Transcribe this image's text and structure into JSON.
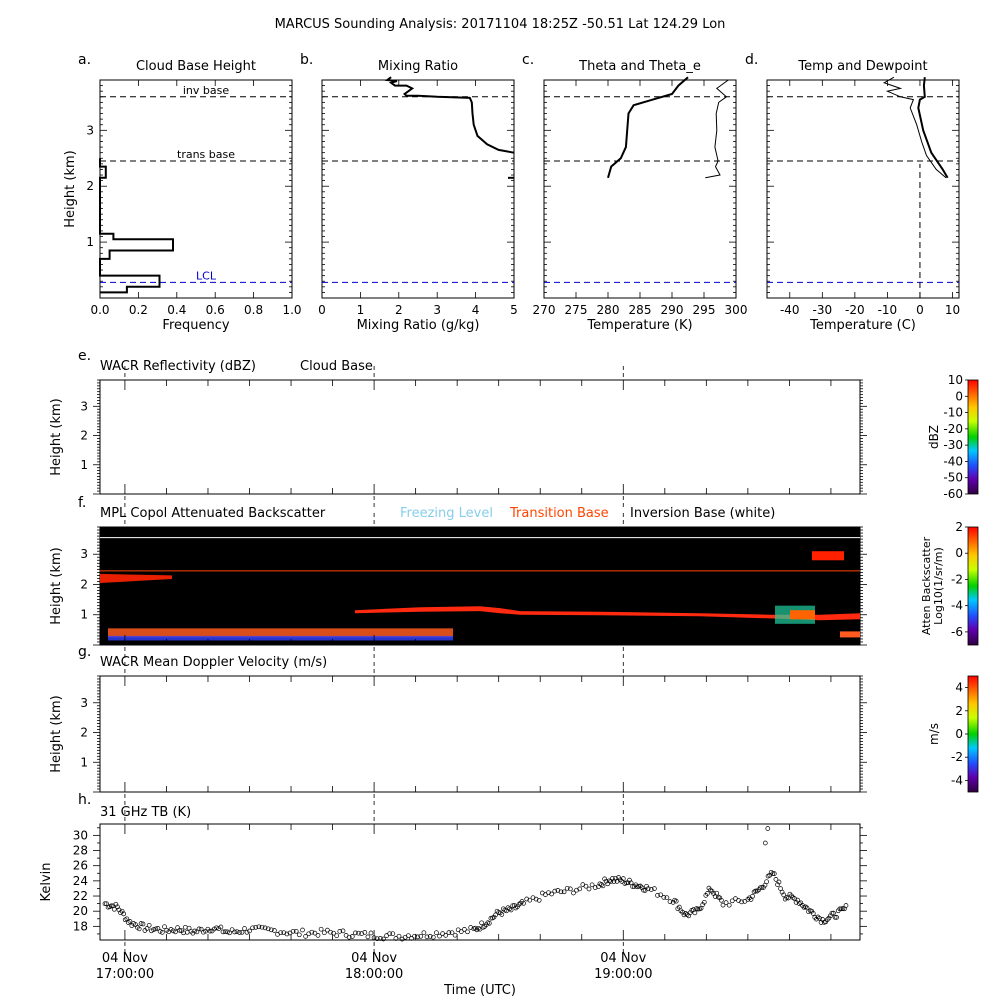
{
  "figure_title": "MARCUS Sounding Analysis: 20171104 18:25Z   -50.51 Lat  124.29 Lon",
  "colors": {
    "freezing": "#87ceeb",
    "transition": "#ff4500",
    "lcl": "#0000cc",
    "mpl_bg": "#000000"
  },
  "chart_data": [
    {
      "id": "a",
      "panel_letter": "a.",
      "type": "line",
      "title": "Cloud Base Height",
      "xlabel": "Frequency",
      "ylabel": "Height (km)",
      "xlim": [
        0,
        1.0
      ],
      "ylim": [
        0,
        3.9
      ],
      "xticks": [
        "0.0",
        "0.2",
        "0.4",
        "0.6",
        "0.8",
        "1.0"
      ],
      "xtick_values": [
        0,
        0.2,
        0.4,
        0.6,
        0.8,
        1.0
      ],
      "yticks": [
        "1",
        "2",
        "3"
      ],
      "ytick_values": [
        1,
        2,
        3
      ],
      "annotations": [
        {
          "text": "inv base",
          "y": 3.6
        },
        {
          "text": "trans base",
          "y": 2.45
        },
        {
          "text": "LCL",
          "y": 0.28
        }
      ],
      "series": [
        {
          "x": [
            0.0,
            0.14,
            0.14,
            0.31,
            0.31,
            0.0,
            0.0,
            0.05,
            0.05,
            0.38,
            0.38,
            0.07,
            0.07,
            0.0,
            0.0,
            0.03,
            0.03,
            0.0,
            0.0
          ],
          "y": [
            0.1,
            0.1,
            0.2,
            0.2,
            0.4,
            0.4,
            0.7,
            0.7,
            0.85,
            0.85,
            1.05,
            1.05,
            1.15,
            1.15,
            2.15,
            2.15,
            2.35,
            2.35,
            2.5
          ]
        }
      ]
    },
    {
      "id": "b",
      "panel_letter": "b.",
      "type": "line",
      "title": "Mixing Ratio",
      "xlabel": "Mixing Ratio (g/kg)",
      "ylabel": "",
      "xlim": [
        0,
        5
      ],
      "ylim": [
        0,
        3.9
      ],
      "xticks": [
        "0",
        "1",
        "2",
        "3",
        "4",
        "5"
      ],
      "xtick_values": [
        0,
        1,
        2,
        3,
        4,
        5
      ],
      "series": [
        {
          "x": [
            5.0,
            4.6,
            4.3,
            4.05,
            3.95,
            3.92,
            3.9,
            3.85,
            3.0,
            2.5,
            2.2,
            2.15,
            2.35,
            2.2,
            1.9,
            1.8,
            1.95,
            1.7,
            1.8
          ],
          "y": [
            2.6,
            2.65,
            2.75,
            2.9,
            3.1,
            3.3,
            3.5,
            3.58,
            3.6,
            3.62,
            3.62,
            3.65,
            3.75,
            3.8,
            3.8,
            3.85,
            3.88,
            3.9,
            3.95
          ]
        }
      ]
    },
    {
      "id": "c",
      "panel_letter": "c.",
      "type": "line",
      "title": "Theta and Theta_e",
      "xlabel": "Temperature (K)",
      "ylabel": "",
      "xlim": [
        270,
        300
      ],
      "ylim": [
        0,
        3.9
      ],
      "xticks": [
        "270",
        "275",
        "280",
        "285",
        "290",
        "295",
        "300"
      ],
      "xtick_values": [
        270,
        275,
        280,
        285,
        290,
        295,
        300
      ],
      "series": [
        {
          "x": [
            280.0,
            280.5,
            282.0,
            282.8,
            283.0,
            283.2,
            284.0,
            287.0,
            290.0,
            291.0,
            292.5
          ],
          "y": [
            2.15,
            2.35,
            2.5,
            2.7,
            3.0,
            3.3,
            3.45,
            3.55,
            3.65,
            3.8,
            3.95
          ]
        },
        {
          "x": [
            295.2,
            297.5,
            296.8,
            297.2,
            296.7,
            297.0,
            296.9,
            297.3,
            298.5,
            297.0,
            298.8
          ],
          "y": [
            2.15,
            2.2,
            2.35,
            2.45,
            2.7,
            3.0,
            3.3,
            3.5,
            3.6,
            3.75,
            3.9
          ]
        }
      ]
    },
    {
      "id": "d",
      "panel_letter": "d.",
      "type": "line",
      "title": "Temp and Dewpoint",
      "xlabel": "Temperature (C)",
      "ylabel": "",
      "xlim": [
        -47,
        12
      ],
      "ylim": [
        0,
        3.9
      ],
      "xticks": [
        "-40",
        "-30",
        "-20",
        "-10",
        "0",
        "10"
      ],
      "xtick_values": [
        -40,
        -30,
        -20,
        -10,
        0,
        10
      ],
      "series": [
        {
          "x": [
            8.5,
            7.0,
            3.5,
            1.0,
            -0.5,
            0.0,
            1.5,
            1.2,
            1.5
          ],
          "y": [
            2.15,
            2.3,
            2.6,
            3.0,
            3.4,
            3.55,
            3.6,
            3.8,
            3.95
          ]
        },
        {
          "x": [
            8.0,
            5.0,
            2.0,
            0.5,
            -1.0,
            -3.0,
            -2.0,
            -6.0,
            -10.0,
            -6.0,
            -11.0,
            -8.0
          ],
          "y": [
            2.15,
            2.3,
            2.55,
            2.8,
            3.1,
            3.4,
            3.55,
            3.6,
            3.7,
            3.75,
            3.85,
            3.95
          ]
        }
      ]
    },
    {
      "id": "e",
      "panel_letter": "e.",
      "type": "heatmap",
      "title": "WACR Reflectivity (dBZ)",
      "title_extra": "Cloud Base",
      "ylabel": "Height (km)",
      "ylim": [
        0,
        3.9
      ],
      "yticks": [
        "1",
        "2",
        "3"
      ],
      "ytick_values": [
        1,
        2,
        3
      ],
      "colorbar": {
        "label": "dBZ",
        "label2": "",
        "ticks": [
          "10",
          "0",
          "-10",
          "-20",
          "-30",
          "-40",
          "-50",
          "-60"
        ],
        "values": [
          10,
          0,
          -10,
          -20,
          -30,
          -40,
          -50,
          -60
        ],
        "range": [
          10,
          -60
        ]
      }
    },
    {
      "id": "f",
      "panel_letter": "f.",
      "type": "heatmap",
      "title": "MPL Copol Attenuated Backscatter",
      "legend": [
        "Freezing Level",
        "Transition Base",
        "Inversion Base (white)"
      ],
      "ylabel": "Height (km)",
      "ylim": [
        0,
        3.9
      ],
      "yticks": [
        "1",
        "2",
        "3"
      ],
      "ytick_values": [
        1,
        2,
        3
      ],
      "inversion_base": 3.55,
      "transition_base": 2.45,
      "colorbar": {
        "label": "Atten Backscatter",
        "label2": "Log10(1/sr/m)",
        "ticks": [
          "2",
          "0",
          "-2",
          "-4",
          "-6"
        ],
        "values": [
          2,
          0,
          -2,
          -4,
          -6
        ],
        "range": [
          2,
          -7
        ]
      }
    },
    {
      "id": "g",
      "panel_letter": "g.",
      "type": "heatmap",
      "title": "WACR Mean Doppler Velocity (m/s)",
      "ylabel": "Height (km)",
      "ylim": [
        0,
        3.9
      ],
      "yticks": [
        "1",
        "2",
        "3"
      ],
      "ytick_values": [
        1,
        2,
        3
      ],
      "colorbar": {
        "label": "m/s",
        "label2": "",
        "ticks": [
          "4",
          "2",
          "0",
          "-2",
          "-4"
        ],
        "values": [
          4,
          2,
          0,
          -2,
          -4
        ],
        "range": [
          5,
          -5
        ]
      }
    },
    {
      "id": "h",
      "panel_letter": "h.",
      "type": "scatter",
      "title": "31 GHz TB (K)",
      "ylabel": "Kelvin",
      "xlabel": "Time (UTC)",
      "xlim": [
        16.9,
        19.95
      ],
      "ylim": [
        16.2,
        31.5
      ],
      "yticks": [
        "18",
        "20",
        "22",
        "24",
        "26",
        "28",
        "30"
      ],
      "ytick_values": [
        18,
        20,
        22,
        24,
        26,
        28,
        30
      ],
      "xticks": [
        {
          "line1": "04 Nov",
          "line2": "17:00:00",
          "value": 17.0
        },
        {
          "line1": "04 Nov",
          "line2": "18:00:00",
          "value": 18.0
        },
        {
          "line1": "04 Nov",
          "line2": "19:00:00",
          "value": 19.0
        }
      ],
      "series": [
        {
          "x": [
            16.92,
            16.97,
            17.02,
            17.08,
            17.15,
            17.22,
            17.28,
            17.35,
            17.42,
            17.5,
            17.6,
            17.7,
            17.8,
            17.9,
            18.0,
            18.1,
            18.2,
            18.3,
            18.4,
            18.45,
            18.5,
            18.55,
            18.6,
            18.7,
            18.8,
            18.9,
            18.95,
            19.0,
            19.05,
            19.1,
            19.2,
            19.25,
            19.3,
            19.35,
            19.4,
            19.5,
            19.55,
            19.6,
            19.65,
            19.7,
            19.75,
            19.8,
            19.85,
            19.9
          ],
          "y": [
            21.0,
            20.5,
            18.5,
            17.8,
            17.5,
            17.6,
            17.3,
            17.8,
            17.2,
            17.6,
            17.4,
            17.1,
            17.2,
            17.0,
            16.8,
            16.7,
            16.9,
            17.2,
            17.5,
            18.5,
            19.8,
            20.2,
            21.0,
            22.3,
            22.8,
            23.5,
            24.2,
            24.0,
            23.5,
            23.0,
            21.5,
            19.5,
            20.0,
            23.0,
            21.0,
            21.5,
            23.0,
            25.0,
            22.0,
            21.5,
            20.0,
            18.8,
            19.5,
            20.5
          ]
        }
      ],
      "outliers": {
        "x": [
          19.57,
          19.58
        ],
        "y": [
          29.0,
          30.9
        ]
      }
    }
  ]
}
